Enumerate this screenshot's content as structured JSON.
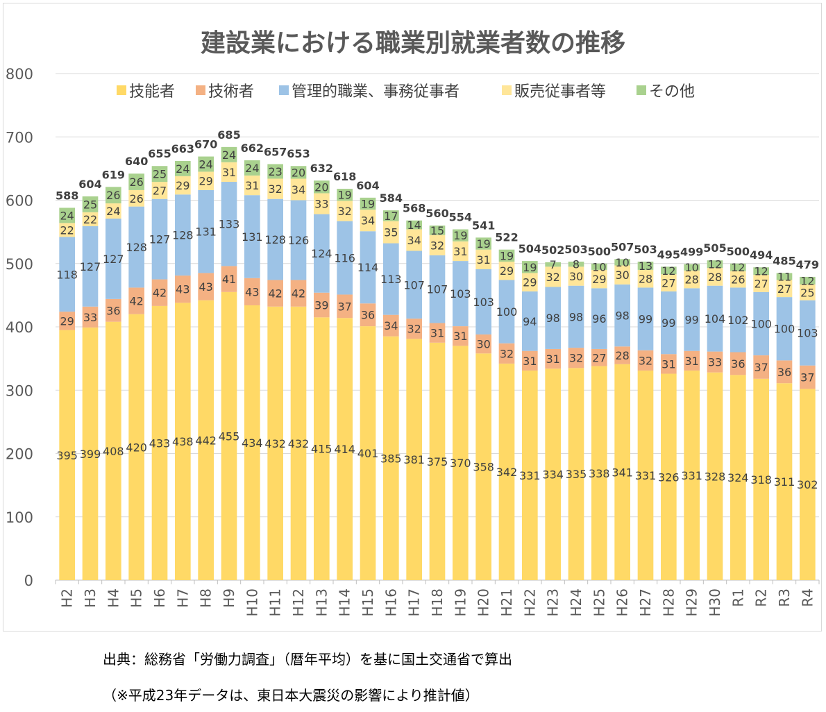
{
  "chart_data": {
    "type": "bar",
    "stacked": true,
    "title": "建設業における職業別就業者数の推移",
    "xlabel": "",
    "ylabel": "",
    "ylim": [
      0,
      800
    ],
    "yticks": [
      0,
      100,
      200,
      300,
      400,
      500,
      600,
      700,
      800
    ],
    "grid": true,
    "legend_position": "top",
    "categories": [
      "H2",
      "H3",
      "H4",
      "H5",
      "H6",
      "H7",
      "H8",
      "H9",
      "H10",
      "H11",
      "H12",
      "H13",
      "H14",
      "H15",
      "H16",
      "H17",
      "H18",
      "H19",
      "H20",
      "H21",
      "H22",
      "H23",
      "H24",
      "H25",
      "H26",
      "H27",
      "H28",
      "H29",
      "H30",
      "R1",
      "R2",
      "R3",
      "R4"
    ],
    "series": [
      {
        "name": "技能者",
        "color": "#ffd966",
        "values": [
          395,
          399,
          408,
          420,
          433,
          438,
          442,
          455,
          434,
          432,
          432,
          415,
          414,
          401,
          385,
          381,
          375,
          370,
          358,
          342,
          331,
          334,
          335,
          338,
          341,
          331,
          326,
          331,
          328,
          324,
          318,
          311,
          302
        ]
      },
      {
        "name": "技術者",
        "color": "#f4b183",
        "values": [
          29,
          33,
          36,
          42,
          42,
          43,
          43,
          41,
          43,
          42,
          42,
          39,
          37,
          36,
          34,
          32,
          31,
          31,
          30,
          32,
          31,
          31,
          32,
          27,
          28,
          32,
          31,
          31,
          33,
          36,
          37,
          36,
          37
        ]
      },
      {
        "name": "管理的職業、事務従事者",
        "color": "#9dc3e6",
        "values": [
          118,
          127,
          127,
          128,
          127,
          128,
          131,
          133,
          131,
          128,
          126,
          124,
          116,
          114,
          113,
          107,
          107,
          103,
          103,
          100,
          94,
          98,
          98,
          96,
          98,
          99,
          99,
          99,
          104,
          102,
          100,
          100,
          103
        ]
      },
      {
        "name": "販売従事者等",
        "color": "#ffe699",
        "values": [
          22,
          22,
          24,
          26,
          27,
          29,
          29,
          31,
          31,
          32,
          34,
          33,
          32,
          34,
          35,
          34,
          32,
          31,
          31,
          29,
          29,
          32,
          30,
          29,
          30,
          28,
          27,
          28,
          28,
          26,
          27,
          27,
          25
        ]
      },
      {
        "name": "その他",
        "color": "#a9d18e",
        "values": [
          24,
          25,
          26,
          26,
          25,
          24,
          24,
          24,
          24,
          23,
          20,
          20,
          19,
          19,
          17,
          14,
          15,
          19,
          19,
          19,
          19,
          7,
          8,
          10,
          10,
          13,
          12,
          10,
          12,
          12,
          12,
          11,
          12
        ]
      }
    ],
    "totals": [
      588,
      604,
      619,
      640,
      655,
      663,
      670,
      685,
      662,
      657,
      653,
      632,
      618,
      604,
      584,
      568,
      560,
      554,
      541,
      522,
      504,
      502,
      503,
      500,
      507,
      503,
      495,
      499,
      505,
      500,
      494,
      485,
      479
    ]
  },
  "source": {
    "line1": "出典：総務省「労働力調査」（暦年平均）を基に国土交通省で算出",
    "line2": "（※平成23年データは、東日本大震災の影響により推計値）"
  }
}
